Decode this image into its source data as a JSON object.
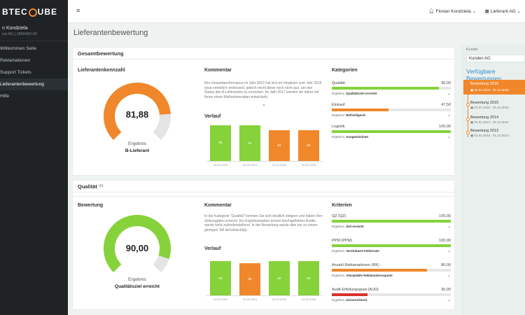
{
  "app": {
    "logo_left": "BTEC",
    "logo_right": "UBE"
  },
  "sidebar": {
    "user_name": "n Kondziela",
    "user_email": "ezi AG | 2866492.00",
    "items": [
      {
        "label": "Willkommen Seite"
      },
      {
        "label": "Reklamationen"
      },
      {
        "label": "Support Tickets"
      },
      {
        "label": "Lieferantenbewertung",
        "active": true
      },
      {
        "label": "Hilfe"
      }
    ]
  },
  "topbar": {
    "menu_icon": "hamburger-icon",
    "user_label": "Florian Kondziela",
    "company_label": "Lieferant AG"
  },
  "page": {
    "title": "Lieferantenbewertung"
  },
  "overall": {
    "header": "Gesamtbewertung",
    "kpi_title": "Lieferantenkennzahl",
    "gauge": {
      "value": "81,88",
      "fraction": 0.8188,
      "label": "Ergebnis",
      "result": "B-Lieferant",
      "color": "#f0872b"
    },
    "comment_title": "Kommentar",
    "comment": "Ihre Gesamtperformance im Jahr 2016 hat sich im Vergleich zum Jahr 2015 zwar erheblich verbessert, jedoch reicht diese noch nicht aus, um den Status des A-Lieferanten zu erreichen. Im Jahr 2017 werden wir daher mit Ihnen einen Maßnahmenplan entwickeln,",
    "history_title": "Verlauf",
    "history": [
      {
        "value": "95",
        "fraction": 0.95,
        "date": "01.01.2013",
        "color": "#86d23a"
      },
      {
        "value": "94",
        "fraction": 0.94,
        "date": "01.01.2014",
        "color": "#86d23a"
      },
      {
        "value": "81",
        "fraction": 0.81,
        "date": "01.01.2015",
        "color": "#f0872b"
      },
      {
        "value": "82",
        "fraction": 0.82,
        "date": "01.01.2016",
        "color": "#f0872b"
      }
    ],
    "categories_title": "Kategorien",
    "categories": [
      {
        "label": "Qualität",
        "value": "90,00",
        "fraction": 0.9,
        "color": "#86d23a",
        "result_label": "Ergebnis:",
        "result": "Qualitätsziel erreicht"
      },
      {
        "label": "Einkauf",
        "value": "47,50",
        "fraction": 0.475,
        "color": "#f0872b",
        "result_label": "Ergebnis:",
        "result": "Befriedigend"
      },
      {
        "label": "Logistik",
        "value": "100,00",
        "fraction": 1.0,
        "color": "#86d23a",
        "result_label": "Ergebnis:",
        "result": "Ausgezeichnet"
      }
    ]
  },
  "quality": {
    "header": "Qualität",
    "header_badge": "(0)",
    "kpi_title": "Bewertung",
    "gauge": {
      "value": "90,00",
      "fraction": 0.9,
      "label": "Ergebnis",
      "result": "Qualitätsziel erreicht",
      "color": "#86d23a"
    },
    "comment_title": "Kommentar",
    "comment": "In der Kategorie \"Qualität\" konnten Sie sich deutlich steigern und haben Ihre Zielvorgaben erreicht. Ein Ergebnisstarker erneut durchgeführtes Audits wurde nicht zufriedenstellend. In der Bewertung wurde dies nur zu einem geringen Teil berücksichtigt.",
    "history_title": "Verlauf",
    "history": [
      {
        "value": "90",
        "fraction": 0.9,
        "date": "01.01.2013",
        "color": "#86d23a"
      },
      {
        "value": "85",
        "fraction": 0.85,
        "date": "01.01.2014",
        "color": "#f0872b"
      },
      {
        "value": "90",
        "fraction": 0.9,
        "date": "01.01.2015",
        "color": "#86d23a"
      },
      {
        "value": "90",
        "fraction": 0.9,
        "date": "01.01.2016",
        "color": "#86d23a"
      }
    ],
    "criteria_title": "Kriterien",
    "criteria": [
      {
        "label": "QZ (QZ)",
        "value": "100,00",
        "fraction": 1.0,
        "color": "#86d23a",
        "result_label": "Ergebnis:",
        "result": "Ziel erreicht"
      },
      {
        "label": "PPM (PPM)",
        "value": "100,00",
        "fraction": 1.0,
        "color": "#86d23a",
        "result_label": "Ergebnis:",
        "result": "Vereinbarte Fehlerrate"
      },
      {
        "label": "Anzahl Reklamationen (RK)",
        "value": "80,00",
        "fraction": 0.8,
        "color": "#f0872b",
        "result_label": "Ergebnis:",
        "result": "Akzeptable Reklamationsquote"
      },
      {
        "label": "Audit-Erfüllungsgrad (AUD)",
        "value": "30,00",
        "fraction": 0.3,
        "color": "#d9312b",
        "result_label": "Ergebnis:",
        "result": "Unzureichend"
      }
    ]
  },
  "right_panel": {
    "customer_label": "Kunde:",
    "customer_value": "Kunden AG",
    "heading": "Verfügbare Bewertungen",
    "active": {
      "title": "Bewertung 2016",
      "range": "01.01.2016 - 31.12.2016"
    },
    "items": [
      {
        "title": "Bewertung 2015",
        "range": "01.01.2015 - 31.12.2015"
      },
      {
        "title": "Bewertung 2014",
        "range": "01.01.2014 - 31.12.2014"
      },
      {
        "title": "Bewertung 2013",
        "range": "01.01.2013 - 31.12.2013"
      }
    ]
  }
}
